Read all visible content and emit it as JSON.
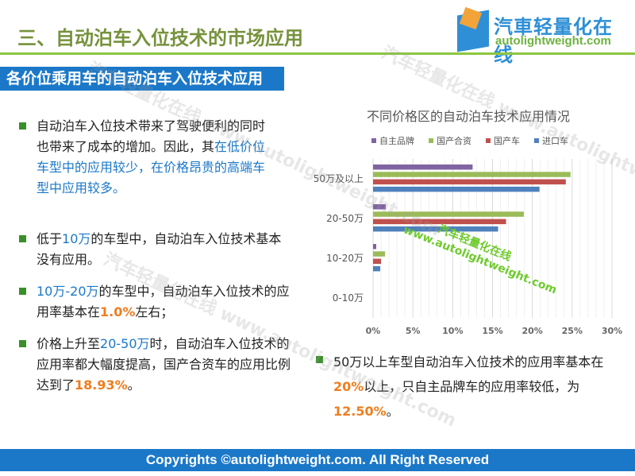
{
  "header": {
    "title": "三、自动泊车入位技术的市场应用",
    "logo_cn": "汽車轻量化在线",
    "logo_en": "autolightweight.com"
  },
  "subtitle": "各价位乘用车的自动泊车入位技术应用",
  "bullets": [
    {
      "parts": [
        {
          "t": "自动泊车入位技术带来了驾驶便利的同时也带来了成本的增加。因此，其",
          "c": ""
        },
        {
          "t": "在低价位车型中的应用较少，在价格昂贵的高端车型中应用较多。",
          "c": "blue"
        }
      ]
    },
    {
      "parts": [
        {
          "t": "低于",
          "c": ""
        },
        {
          "t": "10万",
          "c": "blue"
        },
        {
          "t": "的车型中，自动泊车入位技术基本没有应用。",
          "c": ""
        }
      ]
    },
    {
      "parts": [
        {
          "t": "10万-20万",
          "c": "blue"
        },
        {
          "t": "的车型中，自动泊车入位技术的应用率基本在",
          "c": ""
        },
        {
          "t": "1.0%",
          "c": "org"
        },
        {
          "t": "左右；",
          "c": ""
        }
      ]
    },
    {
      "parts": [
        {
          "t": "价格上升至",
          "c": ""
        },
        {
          "t": "20-50万",
          "c": "blue"
        },
        {
          "t": "时，自动泊车入位技术的应用率都大幅度提高，国产合资车的应用比例达到了",
          "c": ""
        },
        {
          "t": "18.93%",
          "c": "org"
        },
        {
          "t": "。",
          "c": ""
        }
      ]
    },
    {
      "parts": [
        {
          "t": "50万以上车型自动泊车入位技术的应用率基本在",
          "c": ""
        },
        {
          "t": "20%",
          "c": "org"
        },
        {
          "t": "以上，只自主品牌车的应用率较低，为",
          "c": ""
        },
        {
          "t": "12.50%",
          "c": "org"
        },
        {
          "t": "。",
          "c": ""
        }
      ]
    }
  ],
  "chart_data": {
    "type": "bar",
    "orientation": "horizontal",
    "title": "不同价格区的自动泊车技术应用情况",
    "categories": [
      "50万及以上",
      "20-50万",
      "10-20万",
      "0-10万"
    ],
    "series": [
      {
        "name": "自主品牌",
        "color": "#8064a2",
        "values": [
          12.5,
          1.6,
          0.4,
          0
        ]
      },
      {
        "name": "国产合资",
        "color": "#9bbb59",
        "values": [
          24.8,
          18.93,
          1.5,
          0
        ]
      },
      {
        "name": "国产车",
        "color": "#c0504d",
        "values": [
          24.2,
          16.7,
          1.0,
          0
        ]
      },
      {
        "name": "进口车",
        "color": "#4f81bd",
        "values": [
          20.9,
          15.7,
          0.9,
          0
        ]
      }
    ],
    "xlim": [
      0,
      30
    ],
    "xticks": [
      "0%",
      "5%",
      "10%",
      "15%",
      "20%",
      "25%",
      "30%"
    ],
    "legend": "top",
    "grid": true
  },
  "watermark": {
    "green_cn": "汽车轻量化在线",
    "green_en": "www.autolightweight.com"
  },
  "footer": "Copyrights ©autolightweight.com. All Right Reserved"
}
